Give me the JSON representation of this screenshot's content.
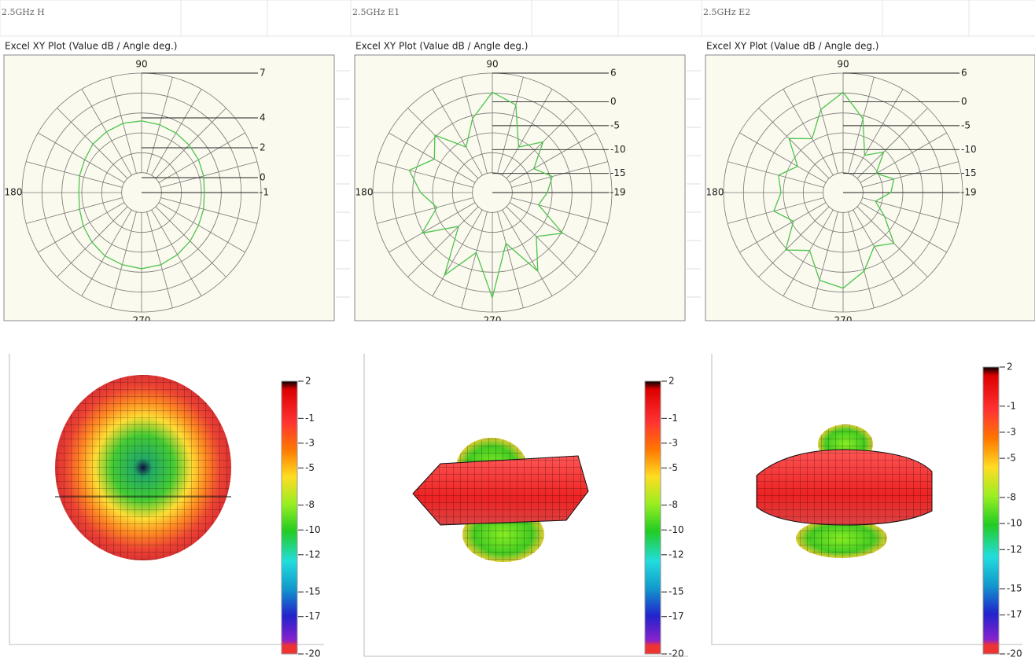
{
  "chart_data": [
    {
      "type": "polar",
      "window_title": "2.5GHz H",
      "title": "Excel XY Plot (Value dB / Angle deg.)",
      "angle_ticks": [
        90,
        180,
        270
      ],
      "rlim": [
        -1,
        7
      ],
      "rticks": [
        7,
        4,
        2,
        0,
        -1
      ],
      "series": [
        {
          "color": "#4cc44c",
          "theta": [
            0,
            15,
            30,
            45,
            60,
            75,
            90,
            105,
            120,
            135,
            150,
            165,
            180,
            195,
            210,
            225,
            240,
            255,
            270,
            285,
            300,
            315,
            330,
            345
          ],
          "values": [
            3.2,
            3.3,
            3.4,
            3.5,
            3.6,
            3.7,
            3.8,
            3.8,
            3.7,
            3.6,
            3.4,
            3.3,
            3.2,
            3.3,
            3.5,
            3.7,
            3.9,
            4.0,
            4.1,
            4.0,
            3.8,
            3.6,
            3.4,
            3.3
          ]
        }
      ],
      "colorbar": {
        "lim": [
          -20,
          2
        ],
        "ticks": [
          2,
          -1,
          -3,
          -5,
          -8,
          -10,
          -12,
          -15,
          -17,
          -20
        ]
      }
    },
    {
      "type": "polar",
      "window_title": "2.5GHz E1",
      "title": "Excel XY Plot (Value dB / Angle deg.)",
      "angle_ticks": [
        90,
        180,
        270
      ],
      "rlim": [
        -19,
        6
      ],
      "rticks": [
        6,
        0,
        -5,
        -10,
        -15,
        -19
      ],
      "series": [
        {
          "color": "#4cc44c",
          "theta": [
            0,
            15,
            30,
            45,
            60,
            75,
            90,
            105,
            120,
            135,
            150,
            165,
            180,
            195,
            210,
            225,
            240,
            255,
            270,
            285,
            300,
            315,
            330,
            345
          ],
          "values": [
            -7.5,
            -6,
            -9,
            -4,
            -8,
            0,
            2,
            -3,
            -8,
            -2,
            -5,
            -1,
            -4,
            -7,
            -2,
            -9,
            1,
            -6,
            3,
            -8,
            0,
            -6,
            -2,
            -9
          ]
        }
      ],
      "colorbar": {
        "lim": [
          -20,
          2
        ],
        "ticks": [
          2,
          -1,
          -3,
          -5,
          -8,
          -10,
          -12,
          -15,
          -17,
          -20
        ]
      }
    },
    {
      "type": "polar",
      "window_title": "2.5GHz E2",
      "title": "Excel XY Plot (Value dB / Angle deg.)",
      "angle_ticks": [
        90,
        180,
        270
      ],
      "rlim": [
        -19,
        6
      ],
      "rticks": [
        6,
        0,
        -5,
        -10,
        -15,
        -19
      ],
      "series": [
        {
          "color": "#4cc44c",
          "theta": [
            0,
            15,
            30,
            45,
            60,
            75,
            90,
            105,
            120,
            135,
            150,
            165,
            180,
            195,
            210,
            225,
            240,
            255,
            270,
            285,
            300,
            315,
            330,
            345
          ],
          "values": [
            -9,
            -8,
            -11,
            -7,
            -10,
            -3,
            2,
            -1,
            -6,
            -3,
            -8,
            -5,
            -6,
            -4,
            -7,
            -2,
            -5,
            0,
            1,
            -2,
            -6,
            -4,
            -9,
            -12
          ]
        }
      ],
      "colorbar": {
        "lim": [
          -20,
          2
        ],
        "ticks": [
          2,
          -1,
          -3,
          -5,
          -8,
          -10,
          -12,
          -15,
          -17,
          -20
        ]
      }
    }
  ]
}
